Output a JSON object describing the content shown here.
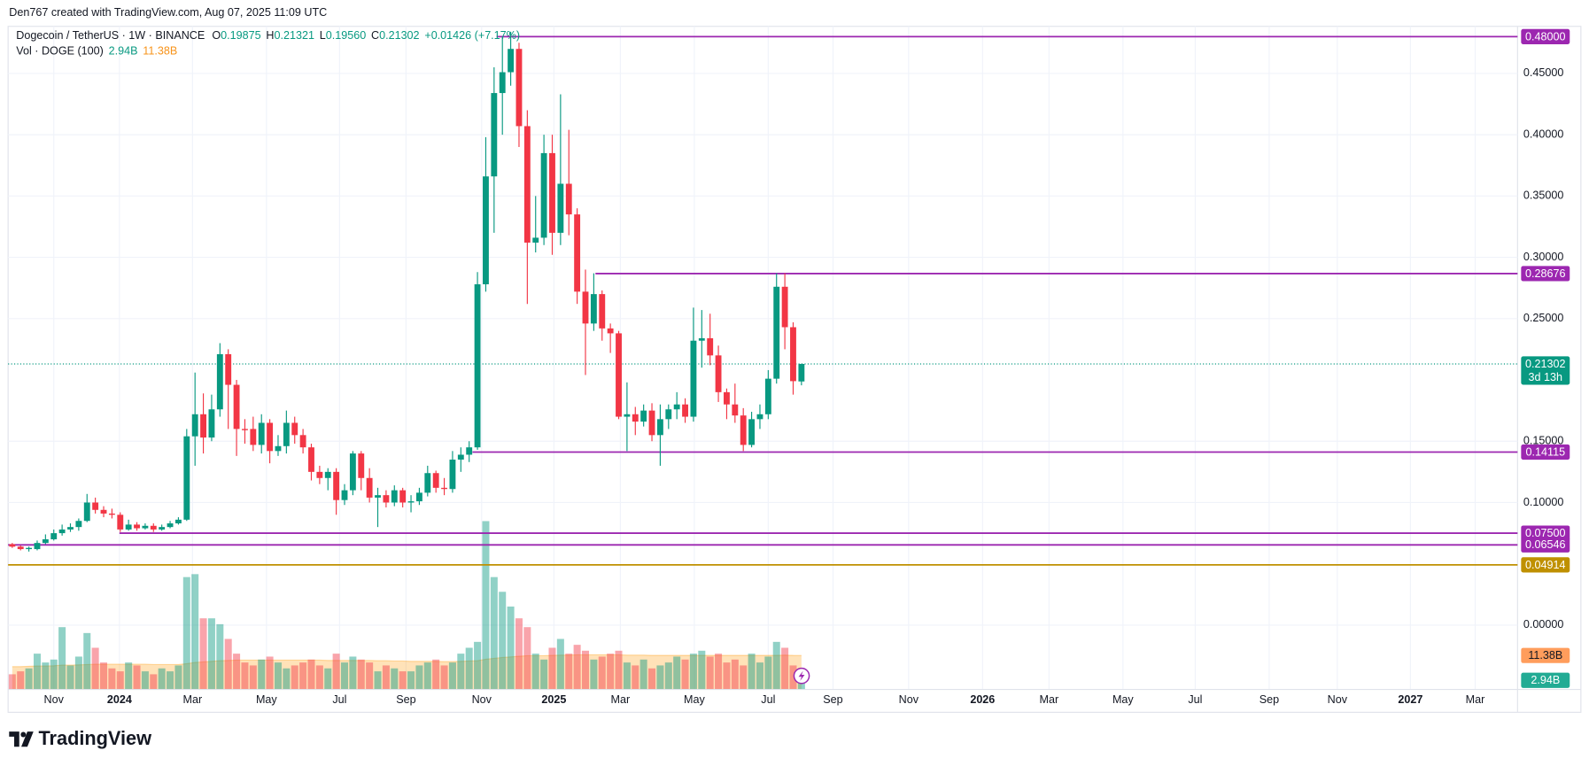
{
  "chart_data": {
    "type": "candlestick",
    "attribution": "Den767 created with TradingView.com, Aug 07, 2025 11:09 UTC",
    "brand": "TradingView",
    "legend": {
      "symbol": "Dogecoin / TetherUS · 1W · BINANCE",
      "labels": [
        "O",
        "H",
        "L",
        "C"
      ],
      "values": [
        "0.19875",
        "0.21321",
        "0.19560",
        "0.21302"
      ],
      "change": "+0.01426 (+7.17%)",
      "volume_title": "Vol · DOGE (100)"
    },
    "up_color": "#089981",
    "down_color": "#f23645",
    "open": [
      0.066,
      0.064,
      0.062,
      0.062,
      0.067,
      0.07,
      0.075,
      0.078,
      0.08,
      0.085,
      0.1,
      0.094,
      0.091,
      0.09,
      0.078,
      0.082,
      0.079,
      0.081,
      0.078,
      0.08,
      0.083,
      0.086,
      0.154,
      0.172,
      0.153,
      0.176,
      0.221,
      0.196,
      0.16,
      0.16,
      0.147,
      0.165,
      0.142,
      0.146,
      0.165,
      0.155,
      0.145,
      0.125,
      0.12,
      0.125,
      0.102,
      0.11,
      0.14,
      0.12,
      0.104,
      0.106,
      0.1,
      0.11,
      0.1,
      0.101,
      0.108,
      0.124,
      0.112,
      0.111,
      0.135,
      0.139,
      0.145,
      0.278,
      0.366,
      0.434,
      0.451,
      0.47,
      0.407,
      0.312,
      0.316,
      0.385,
      0.32,
      0.36,
      0.335,
      0.272,
      0.246,
      0.27,
      0.242,
      0.238,
      0.17,
      0.172,
      0.166,
      0.175,
      0.155,
      0.168,
      0.176,
      0.18,
      0.17,
      0.232,
      0.234,
      0.22,
      0.19,
      0.18,
      0.171,
      0.147,
      0.168,
      0.172,
      0.201,
      0.276,
      0.243,
      0.19875
    ],
    "high": [
      0.067,
      0.065,
      0.064,
      0.069,
      0.074,
      0.078,
      0.082,
      0.083,
      0.087,
      0.107,
      0.104,
      0.097,
      0.095,
      0.092,
      0.086,
      0.084,
      0.083,
      0.083,
      0.082,
      0.085,
      0.088,
      0.16,
      0.206,
      0.189,
      0.188,
      0.23,
      0.225,
      0.2,
      0.168,
      0.17,
      0.172,
      0.168,
      0.155,
      0.175,
      0.17,
      0.16,
      0.148,
      0.13,
      0.128,
      0.128,
      0.115,
      0.142,
      0.142,
      0.128,
      0.112,
      0.11,
      0.114,
      0.112,
      0.106,
      0.112,
      0.13,
      0.126,
      0.12,
      0.142,
      0.145,
      0.15,
      0.288,
      0.398,
      0.455,
      0.48,
      0.484,
      0.475,
      0.42,
      0.35,
      0.4,
      0.4,
      0.433,
      0.404,
      0.34,
      0.29,
      0.287,
      0.273,
      0.246,
      0.24,
      0.198,
      0.178,
      0.18,
      0.181,
      0.18,
      0.18,
      0.19,
      0.185,
      0.259,
      0.257,
      0.254,
      0.228,
      0.193,
      0.197,
      0.177,
      0.174,
      0.18,
      0.208,
      0.287,
      0.287,
      0.247,
      0.21321
    ],
    "low": [
      0.063,
      0.061,
      0.06,
      0.061,
      0.066,
      0.069,
      0.073,
      0.076,
      0.077,
      0.084,
      0.091,
      0.088,
      0.087,
      0.076,
      0.077,
      0.077,
      0.078,
      0.076,
      0.077,
      0.079,
      0.082,
      0.085,
      0.13,
      0.14,
      0.15,
      0.17,
      0.16,
      0.138,
      0.148,
      0.142,
      0.14,
      0.132,
      0.138,
      0.14,
      0.148,
      0.14,
      0.118,
      0.115,
      0.11,
      0.09,
      0.098,
      0.106,
      0.11,
      0.1,
      0.08,
      0.096,
      0.097,
      0.096,
      0.092,
      0.098,
      0.105,
      0.108,
      0.106,
      0.108,
      0.125,
      0.133,
      0.143,
      0.272,
      0.32,
      0.4,
      0.44,
      0.39,
      0.262,
      0.304,
      0.31,
      0.302,
      0.31,
      0.318,
      0.262,
      0.204,
      0.24,
      0.232,
      0.222,
      0.168,
      0.142,
      0.155,
      0.162,
      0.15,
      0.13,
      0.16,
      0.168,
      0.165,
      0.166,
      0.21,
      0.212,
      0.182,
      0.168,
      0.165,
      0.142,
      0.145,
      0.16,
      0.168,
      0.197,
      0.225,
      0.188,
      0.1956
    ],
    "close": [
      0.064,
      0.062,
      0.063,
      0.067,
      0.07,
      0.075,
      0.078,
      0.08,
      0.085,
      0.1,
      0.094,
      0.091,
      0.09,
      0.078,
      0.082,
      0.079,
      0.081,
      0.078,
      0.08,
      0.083,
      0.086,
      0.154,
      0.172,
      0.153,
      0.176,
      0.221,
      0.196,
      0.16,
      0.159,
      0.147,
      0.165,
      0.142,
      0.146,
      0.165,
      0.155,
      0.145,
      0.125,
      0.12,
      0.125,
      0.102,
      0.11,
      0.14,
      0.12,
      0.104,
      0.106,
      0.1,
      0.11,
      0.1,
      0.101,
      0.108,
      0.124,
      0.112,
      0.111,
      0.135,
      0.139,
      0.145,
      0.278,
      0.366,
      0.434,
      0.451,
      0.47,
      0.407,
      0.312,
      0.316,
      0.385,
      0.32,
      0.36,
      0.335,
      0.272,
      0.246,
      0.27,
      0.242,
      0.238,
      0.17,
      0.172,
      0.166,
      0.175,
      0.155,
      0.168,
      0.176,
      0.18,
      0.17,
      0.232,
      0.234,
      0.22,
      0.19,
      0.18,
      0.171,
      0.147,
      0.168,
      0.172,
      0.201,
      0.276,
      0.243,
      0.199,
      0.21302
    ],
    "volume": [
      5,
      6,
      7,
      12,
      9,
      10,
      21,
      8,
      11,
      19,
      14,
      9,
      7,
      6,
      9,
      8,
      6,
      5,
      7,
      6,
      8,
      38,
      39,
      24,
      24,
      22,
      17,
      12,
      9,
      8,
      10,
      11,
      9,
      7,
      8,
      9,
      10,
      8,
      7,
      12,
      9,
      11,
      10,
      9,
      6,
      8,
      7,
      6,
      6,
      8,
      9,
      10,
      8,
      9,
      12,
      14,
      16,
      57,
      38,
      33,
      28,
      24,
      21,
      12,
      10,
      14,
      17,
      12,
      15,
      13,
      10,
      11,
      12,
      13,
      9,
      8,
      10,
      7,
      8,
      9,
      11,
      10,
      12,
      13,
      11,
      12,
      9,
      10,
      8,
      12,
      9,
      11,
      16,
      14,
      8,
      2.94
    ],
    "volume_ma": [
      7.6,
      7.6,
      7.7,
      7.8,
      7.8,
      7.9,
      8.1,
      8.1,
      8.2,
      8.3,
      8.4,
      8.4,
      8.4,
      8.4,
      8.4,
      8.4,
      8.4,
      8.3,
      8.3,
      8.3,
      8.3,
      8.6,
      9.0,
      9.2,
      9.4,
      9.6,
      9.7,
      9.8,
      9.8,
      9.8,
      9.8,
      9.8,
      9.8,
      9.8,
      9.8,
      9.8,
      9.8,
      9.8,
      9.7,
      9.7,
      9.7,
      9.7,
      9.7,
      9.7,
      9.6,
      9.6,
      9.5,
      9.5,
      9.4,
      9.4,
      9.4,
      9.4,
      9.3,
      9.3,
      9.4,
      9.5,
      9.6,
      10.1,
      10.4,
      10.7,
      10.9,
      11.1,
      11.3,
      11.3,
      11.3,
      11.4,
      11.5,
      11.5,
      11.6,
      11.6,
      11.6,
      11.6,
      11.6,
      11.6,
      11.5,
      11.5,
      11.5,
      11.4,
      11.4,
      11.4,
      11.4,
      11.4,
      11.4,
      11.4,
      11.4,
      11.4,
      11.4,
      11.4,
      11.4,
      11.4,
      11.4,
      11.4,
      11.4,
      11.5,
      11.4,
      11.38
    ],
    "volume_labels": [
      "2.94B",
      "11.38B"
    ],
    "volume_ma_color": "#ff9800",
    "vlim": [
      0,
      225
    ],
    "xlim": [
      -0.5,
      181.2
    ],
    "ylim": [
      -0.0521,
      0.4884
    ],
    "xticks": [
      {
        "value": 5.0,
        "label": "Nov"
      },
      {
        "value": 12.9,
        "label": "2024"
      },
      {
        "value": 21.7,
        "label": "Mar"
      },
      {
        "value": 30.6,
        "label": "May"
      },
      {
        "value": 39.4,
        "label": "Jul"
      },
      {
        "value": 47.4,
        "label": "Sep"
      },
      {
        "value": 56.5,
        "label": "Nov"
      },
      {
        "value": 65.2,
        "label": "2025"
      },
      {
        "value": 73.2,
        "label": "Mar"
      },
      {
        "value": 82.1,
        "label": "May"
      },
      {
        "value": 91.0,
        "label": "Jul"
      },
      {
        "value": 98.8,
        "label": "Sep"
      },
      {
        "value": 107.9,
        "label": "Nov"
      },
      {
        "value": 116.8,
        "label": "2026"
      },
      {
        "value": 124.8,
        "label": "Mar"
      },
      {
        "value": 133.7,
        "label": "May"
      },
      {
        "value": 142.4,
        "label": "Jul"
      },
      {
        "value": 151.3,
        "label": "Sep"
      },
      {
        "value": 159.5,
        "label": "Nov"
      },
      {
        "value": 168.3,
        "label": "2027"
      },
      {
        "value": 176.1,
        "label": "Mar"
      }
    ],
    "yticks": [
      {
        "value": 0,
        "label": "0.00000"
      },
      {
        "value": 0.1,
        "label": "0.10000"
      },
      {
        "value": 0.15,
        "label": "0.15000"
      },
      {
        "value": 0.25,
        "label": "0.25000"
      },
      {
        "value": 0.3,
        "label": "0.30000"
      },
      {
        "value": 0.35,
        "label": "0.35000"
      },
      {
        "value": 0.4,
        "label": "0.40000"
      },
      {
        "value": 0.45,
        "label": "0.45000"
      }
    ],
    "grid": true,
    "levels": [
      {
        "value": 0.48,
        "label": "0.48000",
        "from": 58.3,
        "color": "#9c27b0"
      },
      {
        "value": 0.28676,
        "label": "0.28676",
        "from": 70.2,
        "color": "#9c27b0"
      },
      {
        "value": 0.14115,
        "label": "0.14115",
        "from": 55.4,
        "color": "#9c27b0"
      },
      {
        "value": 0.075,
        "label": "0.07500",
        "from": 12.9,
        "color": "#9c27b0"
      },
      {
        "value": 0.06546,
        "label": "0.06546",
        "from": -0.5,
        "color": "#9c27b0"
      },
      {
        "value": 0.04914,
        "label": "0.04914",
        "from": -0.5,
        "color": "#bf9000"
      }
    ],
    "last_price_label": "0.21302",
    "countdown": "3d 13h"
  }
}
